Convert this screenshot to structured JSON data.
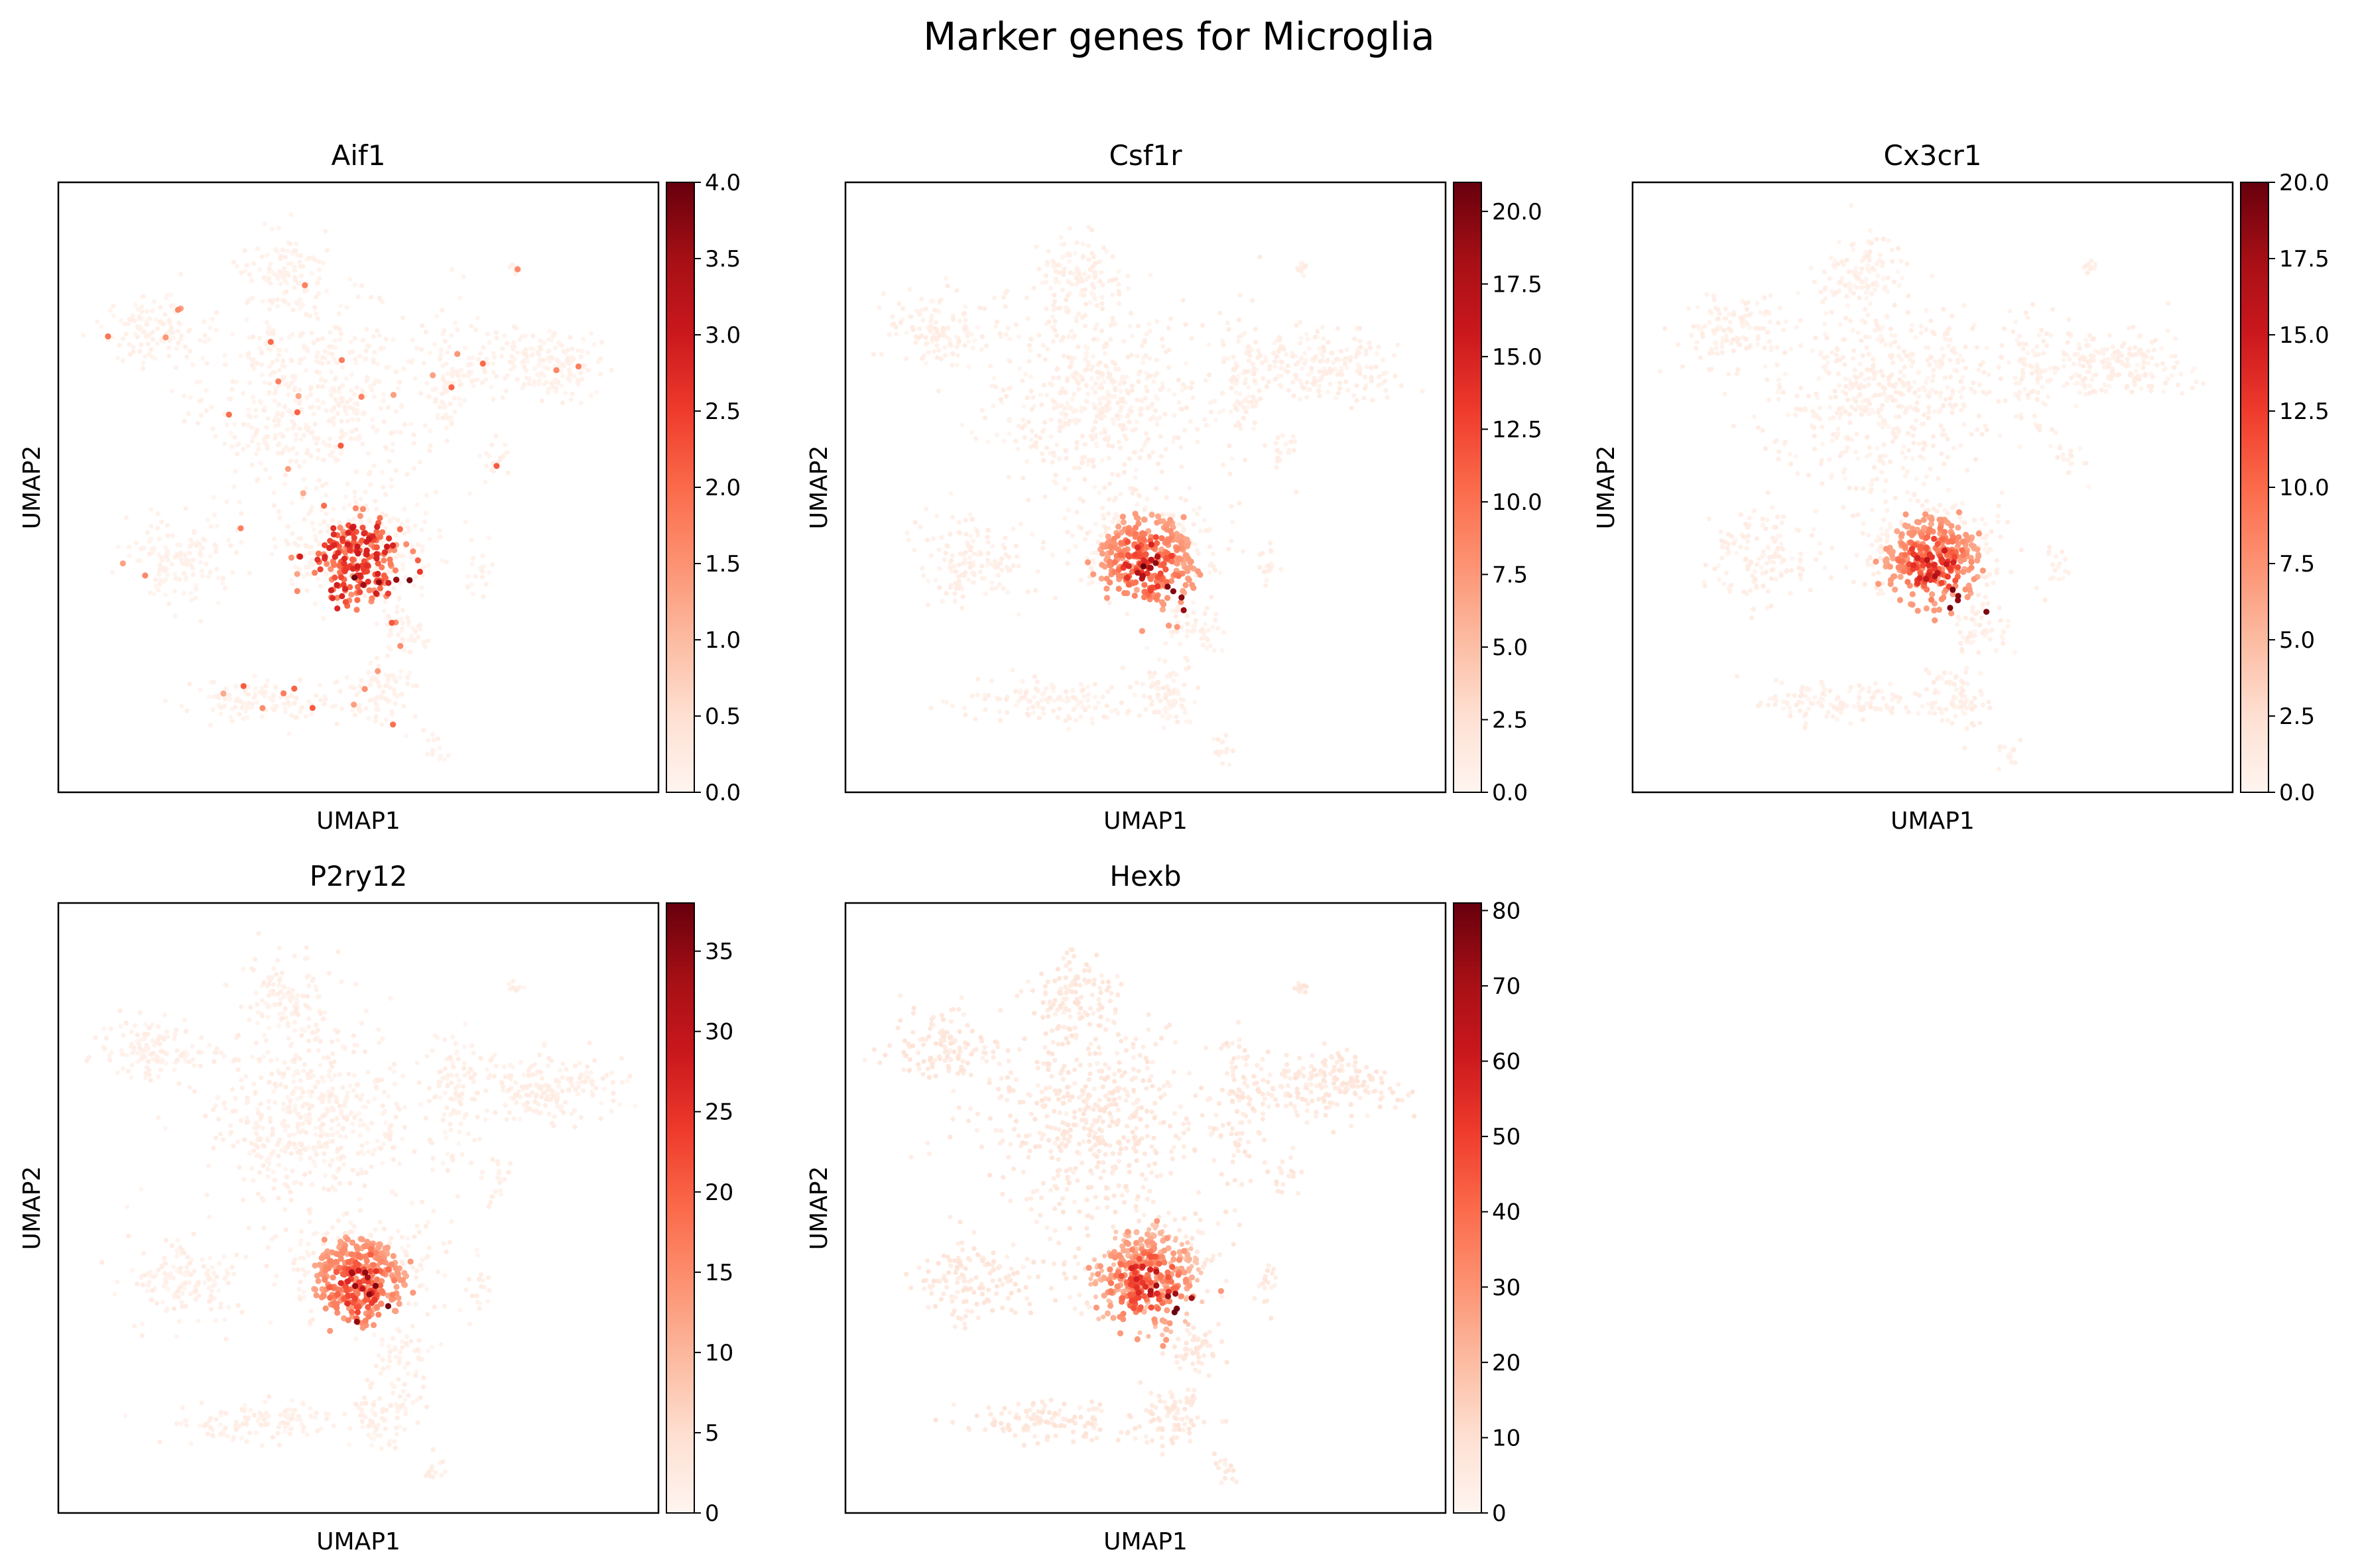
{
  "figure": {
    "title": "Marker genes for Microglia"
  },
  "chart_data": [
    {
      "type": "scatter",
      "title": "Aif1",
      "xlabel": "UMAP1",
      "ylabel": "UMAP2",
      "colormap": "Reds",
      "grid": false,
      "color_range": [
        0,
        4.0
      ],
      "colorbar_ticks": [
        "0.0",
        "0.5",
        "1.0",
        "1.5",
        "2.0",
        "2.5",
        "3.0",
        "3.5",
        "4.0"
      ],
      "colorbar_tick_values": [
        0,
        0.5,
        1.0,
        1.5,
        2.0,
        2.5,
        3.0,
        3.5,
        4.0
      ],
      "pattern": "sparse",
      "seed": 11
    },
    {
      "type": "scatter",
      "title": "Csf1r",
      "xlabel": "UMAP1",
      "ylabel": "UMAP2",
      "colormap": "Reds",
      "grid": false,
      "color_range": [
        0,
        21.0
      ],
      "colorbar_ticks": [
        "0.0",
        "2.5",
        "5.0",
        "7.5",
        "10.0",
        "12.5",
        "15.0",
        "17.5",
        "20.0"
      ],
      "colorbar_tick_values": [
        0,
        2.5,
        5.0,
        7.5,
        10.0,
        12.5,
        15.0,
        17.5,
        20.0
      ],
      "pattern": "cluster",
      "seed": 23
    },
    {
      "type": "scatter",
      "title": "Cx3cr1",
      "xlabel": "UMAP1",
      "ylabel": "UMAP2",
      "colormap": "Reds",
      "grid": false,
      "color_range": [
        0,
        20.0
      ],
      "colorbar_ticks": [
        "0.0",
        "2.5",
        "5.0",
        "7.5",
        "10.0",
        "12.5",
        "15.0",
        "17.5",
        "20.0"
      ],
      "colorbar_tick_values": [
        0,
        2.5,
        5.0,
        7.5,
        10.0,
        12.5,
        15.0,
        17.5,
        20.0
      ],
      "pattern": "cluster",
      "seed": 37
    },
    {
      "type": "scatter",
      "title": "P2ry12",
      "xlabel": "UMAP1",
      "ylabel": "UMAP2",
      "colormap": "Reds",
      "grid": false,
      "color_range": [
        0,
        38
      ],
      "colorbar_ticks": [
        "0",
        "5",
        "10",
        "15",
        "20",
        "25",
        "30",
        "35"
      ],
      "colorbar_tick_values": [
        0,
        5,
        10,
        15,
        20,
        25,
        30,
        35
      ],
      "pattern": "cluster",
      "seed": 41
    },
    {
      "type": "scatter",
      "title": "Hexb",
      "xlabel": "UMAP1",
      "ylabel": "UMAP2",
      "colormap": "Reds",
      "grid": false,
      "color_range": [
        0,
        81
      ],
      "colorbar_ticks": [
        "0",
        "10",
        "20",
        "30",
        "40",
        "50",
        "60",
        "70",
        "80"
      ],
      "colorbar_tick_values": [
        0,
        10,
        20,
        30,
        40,
        50,
        60,
        70,
        80
      ],
      "pattern": "broad",
      "seed": 53
    }
  ]
}
